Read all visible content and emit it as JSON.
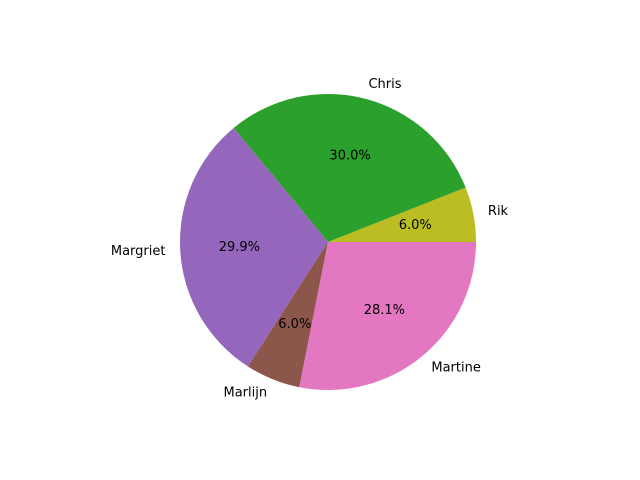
{
  "chart_data": {
    "type": "pie",
    "categories": [
      "Rik",
      "Chris",
      "Margriet",
      "Marlijn",
      "Martine"
    ],
    "values": [
      6.0,
      30.0,
      29.9,
      6.0,
      28.1
    ],
    "percent_labels": [
      "6.0%",
      "30.0%",
      "29.9%",
      "6.0%",
      "28.1%"
    ],
    "colors": [
      "#bcbd22",
      "#2ca02c",
      "#9467bd",
      "#8c564b",
      "#e377c2"
    ],
    "start_angle_deg": 0,
    "direction": "counterclockwise",
    "title": "",
    "legend": "none"
  }
}
